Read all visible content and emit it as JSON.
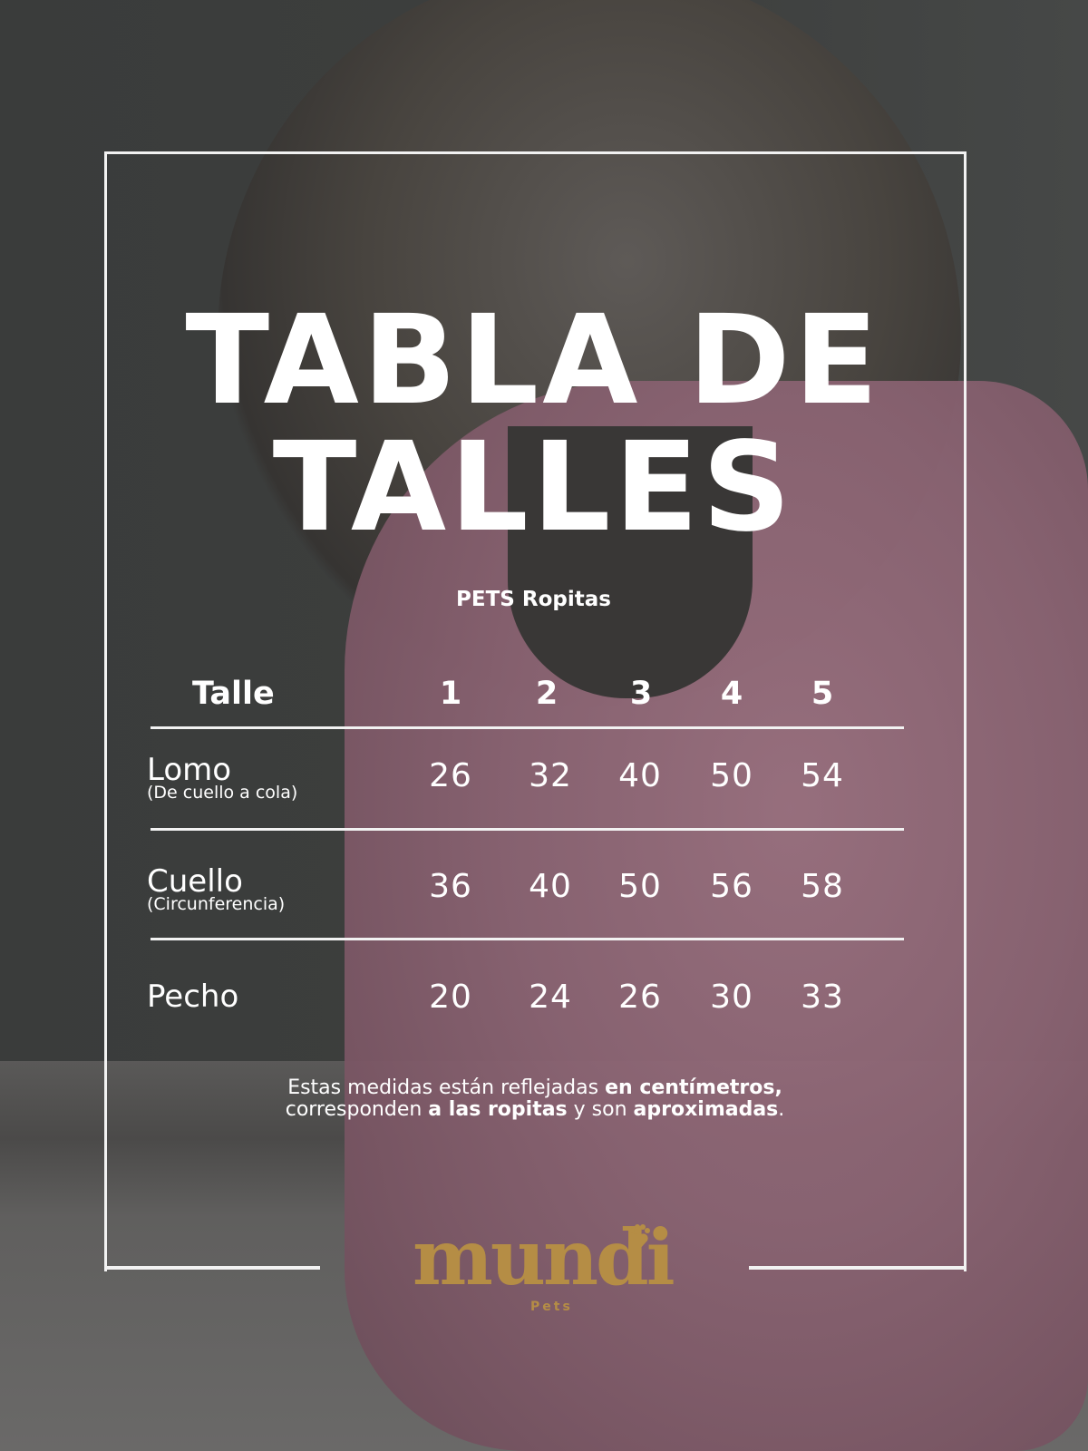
{
  "title": {
    "line1": "TABLA DE",
    "line2": "TALLES"
  },
  "subtitle": "PETS Ropitas",
  "table": {
    "header_label": "Talle",
    "sizes": [
      "1",
      "2",
      "3",
      "4",
      "5"
    ],
    "rows": [
      {
        "label": "Lomo",
        "sublabel": "(De cuello a cola)",
        "values": [
          "26",
          "32",
          "40",
          "50",
          "54"
        ]
      },
      {
        "label": "Cuello",
        "sublabel": "(Circunferencia)",
        "values": [
          "36",
          "40",
          "50",
          "56",
          "58"
        ]
      },
      {
        "label": "Pecho",
        "sublabel": "",
        "values": [
          "20",
          "24",
          "26",
          "30",
          "33"
        ]
      }
    ]
  },
  "note": {
    "p1": "Estas medidas están reflejadas ",
    "b1": "en centímetros,",
    "p2": " corresponden ",
    "b2": "a las ropitas",
    "p3": " y son ",
    "b3": "aproximadas",
    "p4": "."
  },
  "logo": {
    "name": "mundi",
    "sub": "Pets",
    "icon": "paw-heart-icon"
  },
  "colors": {
    "frame": "#f2f2f2",
    "logo": "#b58d45",
    "background": "#3b3d3c",
    "coat": "#8a6372"
  }
}
